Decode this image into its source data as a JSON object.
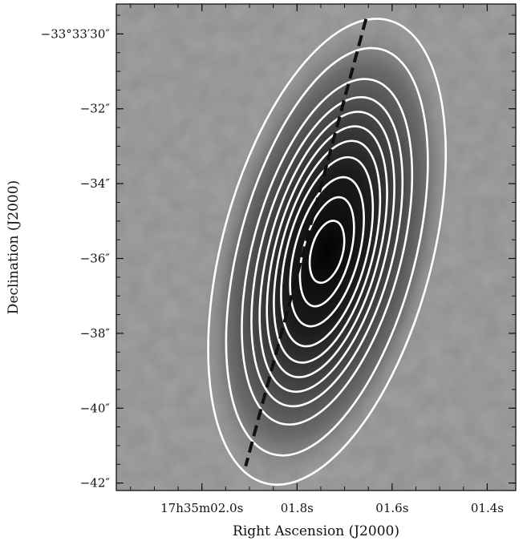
{
  "chart_data": {
    "type": "heatmap",
    "xlabel": "Right Ascension (J2000)",
    "ylabel": "Declination (J2000)",
    "xlim": [
      2.18,
      1.34
    ],
    "ylim": [
      -42.2,
      -29.2
    ],
    "x_ticks": [
      {
        "value": 2.0,
        "label": "17h35m02.0s"
      },
      {
        "value": 1.8,
        "label": "01.8s"
      },
      {
        "value": 1.6,
        "label": "01.6s"
      },
      {
        "value": 1.4,
        "label": "01.4s"
      }
    ],
    "y_ticks": [
      {
        "value": -30,
        "label": "−33°33′30″"
      },
      {
        "value": -32,
        "label": "−32″"
      },
      {
        "value": -34,
        "label": "−34″"
      },
      {
        "value": -36,
        "label": "−36″"
      },
      {
        "value": -38,
        "label": "−38″"
      },
      {
        "value": -40,
        "label": "−40″"
      },
      {
        "value": -42,
        "label": "−42″"
      }
    ],
    "colormap": "grayscale (dark = high intensity)",
    "contour_color": "#ffffff",
    "contours": {
      "center_ra_s": 1.737,
      "center_dec_arcsec": -35.82,
      "position_angle_deg_from_north": 15,
      "semi_major_arcsec": [
        6.4,
        5.6,
        4.75,
        4.25,
        3.85,
        3.45,
        3.05,
        2.6,
        2.05,
        1.5,
        0.85
      ],
      "semi_minor_arcsec": [
        2.8,
        2.35,
        1.98,
        1.75,
        1.55,
        1.38,
        1.22,
        1.06,
        0.86,
        0.63,
        0.42
      ]
    },
    "dashed_line": {
      "points": [
        {
          "ra": 1.655,
          "dec": -29.6
        },
        {
          "ra": 1.908,
          "dec": -41.55
        }
      ],
      "color": "#111111"
    }
  }
}
